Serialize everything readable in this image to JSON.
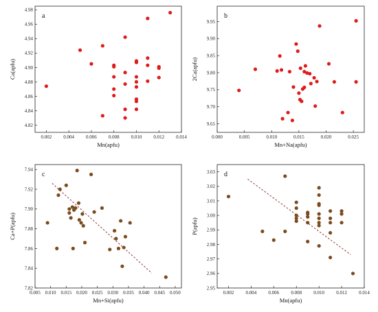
{
  "chart_data": [
    {
      "type": "scatter",
      "panel_label": "a",
      "xlabel": "Mn(apfu)",
      "ylabel": "Ca(apfu)",
      "xlim": [
        0.001,
        0.014
      ],
      "ylim": [
        4.81,
        4.985
      ],
      "xticks": [
        "0.002",
        "0.004",
        "0.006",
        "0.008",
        "0.010",
        "0.012",
        "0.014"
      ],
      "yticks": [
        "4.82",
        "4.84",
        "4.86",
        "4.88",
        "4.90",
        "4.92",
        "4.94",
        "4.96",
        "4.98"
      ],
      "marker_color": "#dd1c1c",
      "trendline": null,
      "points": [
        [
          0.002,
          4.874
        ],
        [
          0.005,
          4.924
        ],
        [
          0.006,
          4.905
        ],
        [
          0.007,
          4.93
        ],
        [
          0.007,
          4.833
        ],
        [
          0.008,
          4.903
        ],
        [
          0.008,
          4.901
        ],
        [
          0.008,
          4.887
        ],
        [
          0.008,
          4.87
        ],
        [
          0.008,
          4.861
        ],
        [
          0.009,
          4.942
        ],
        [
          0.009,
          4.893
        ],
        [
          0.009,
          4.877
        ],
        [
          0.009,
          4.842
        ],
        [
          0.009,
          4.83
        ],
        [
          0.01,
          4.909
        ],
        [
          0.01,
          4.907
        ],
        [
          0.01,
          4.887
        ],
        [
          0.01,
          4.88
        ],
        [
          0.01,
          4.873
        ],
        [
          0.01,
          4.856
        ],
        [
          0.01,
          4.853
        ],
        [
          0.01,
          4.842
        ],
        [
          0.011,
          4.968
        ],
        [
          0.011,
          4.913
        ],
        [
          0.011,
          4.903
        ],
        [
          0.011,
          4.881
        ],
        [
          0.012,
          4.901
        ],
        [
          0.012,
          4.899
        ],
        [
          0.012,
          4.886
        ],
        [
          0.013,
          4.976
        ]
      ]
    },
    {
      "type": "scatter",
      "panel_label": "b",
      "xlabel": "Mn+Na(apfu)",
      "ylabel": "2Ca(apfu)",
      "xlim": [
        0.0,
        0.027
      ],
      "ylim": [
        9.625,
        9.995
      ],
      "xticks": [
        "0.000",
        "0.005",
        "0.010",
        "0.015",
        "0.020",
        "0.025"
      ],
      "yticks": [
        "9.65",
        "9.70",
        "9.75",
        "9.80",
        "9.85",
        "9.90",
        "9.95"
      ],
      "marker_color": "#dd1c1c",
      "trendline": null,
      "points": [
        [
          0.004,
          9.748
        ],
        [
          0.007,
          9.81
        ],
        [
          0.011,
          9.805
        ],
        [
          0.0115,
          9.849
        ],
        [
          0.0118,
          9.808
        ],
        [
          0.012,
          9.665
        ],
        [
          0.013,
          9.683
        ],
        [
          0.0133,
          9.803
        ],
        [
          0.0138,
          9.66
        ],
        [
          0.014,
          9.758
        ],
        [
          0.0145,
          9.884
        ],
        [
          0.0148,
          9.863
        ],
        [
          0.015,
          9.74
        ],
        [
          0.0152,
          9.721
        ],
        [
          0.0153,
          9.813
        ],
        [
          0.0155,
          9.716
        ],
        [
          0.0157,
          9.752
        ],
        [
          0.016,
          9.803
        ],
        [
          0.016,
          9.757
        ],
        [
          0.0162,
          9.82
        ],
        [
          0.0165,
          9.799
        ],
        [
          0.017,
          9.797
        ],
        [
          0.0172,
          9.768
        ],
        [
          0.0178,
          9.785
        ],
        [
          0.018,
          9.702
        ],
        [
          0.0183,
          9.774
        ],
        [
          0.0188,
          9.937
        ],
        [
          0.0205,
          9.826
        ],
        [
          0.0215,
          9.773
        ],
        [
          0.023,
          9.683
        ],
        [
          0.0255,
          9.952
        ],
        [
          0.0255,
          9.773
        ]
      ]
    },
    {
      "type": "scatter",
      "panel_label": "c",
      "xlabel": "Mn+Si(apfu)",
      "ylabel": "Ca+P(apfu)",
      "xlim": [
        0.005,
        0.052
      ],
      "ylim": [
        7.82,
        7.945
      ],
      "xticks": [
        "0.005",
        "0.010",
        "0.015",
        "0.020",
        "0.025",
        "0.030",
        "0.035",
        "0.040",
        "0.045",
        "0.050"
      ],
      "yticks": [
        "7.82",
        "7.84",
        "7.86",
        "7.88",
        "7.90",
        "7.92",
        "7.94"
      ],
      "marker_color": "#7b4c1f",
      "trendline": {
        "style": "dashed",
        "color": "#8b2e2e",
        "from": [
          0.0105,
          7.926
        ],
        "to": [
          0.0425,
          7.835
        ]
      },
      "points": [
        [
          0.009,
          7.886
        ],
        [
          0.012,
          7.86
        ],
        [
          0.0125,
          7.914
        ],
        [
          0.013,
          7.92
        ],
        [
          0.015,
          7.924
        ],
        [
          0.016,
          7.9
        ],
        [
          0.016,
          7.896
        ],
        [
          0.0165,
          7.891
        ],
        [
          0.017,
          7.902
        ],
        [
          0.0172,
          7.86
        ],
        [
          0.0175,
          7.899
        ],
        [
          0.018,
          7.901
        ],
        [
          0.0185,
          7.939
        ],
        [
          0.019,
          7.906
        ],
        [
          0.0192,
          7.889
        ],
        [
          0.0198,
          7.886
        ],
        [
          0.0202,
          7.895
        ],
        [
          0.0205,
          7.883
        ],
        [
          0.021,
          7.866
        ],
        [
          0.023,
          7.935
        ],
        [
          0.024,
          7.897
        ],
        [
          0.0265,
          7.901
        ],
        [
          0.029,
          7.859
        ],
        [
          0.0305,
          7.878
        ],
        [
          0.031,
          7.87
        ],
        [
          0.0318,
          7.86
        ],
        [
          0.0325,
          7.888
        ],
        [
          0.033,
          7.842
        ],
        [
          0.0335,
          7.861
        ],
        [
          0.034,
          7.872
        ],
        [
          0.0355,
          7.886
        ],
        [
          0.047,
          7.831
        ]
      ]
    },
    {
      "type": "scatter",
      "panel_label": "d",
      "xlabel": "Mn(apfu)",
      "ylabel": "P(apfu)",
      "xlim": [
        0.001,
        0.014
      ],
      "ylim": [
        2.95,
        3.035
      ],
      "xticks": [
        "0.002",
        "0.004",
        "0.006",
        "0.008",
        "0.010",
        "0.012",
        "0.014"
      ],
      "yticks": [
        "2.95",
        "2.96",
        "2.97",
        "2.98",
        "2.99",
        "3.00",
        "3.01",
        "3.02",
        "3.03"
      ],
      "marker_color": "#7b4c1f",
      "trendline": {
        "style": "dashed",
        "color": "#8b2e2e",
        "from": [
          0.0037,
          3.025
        ],
        "to": [
          0.0128,
          2.973
        ]
      },
      "points": [
        [
          0.002,
          3.013
        ],
        [
          0.005,
          2.989
        ],
        [
          0.006,
          2.983
        ],
        [
          0.007,
          3.027
        ],
        [
          0.007,
          2.989
        ],
        [
          0.008,
          3.009
        ],
        [
          0.008,
          3.005
        ],
        [
          0.008,
          3.0
        ],
        [
          0.008,
          2.998
        ],
        [
          0.008,
          2.996
        ],
        [
          0.009,
          3.002
        ],
        [
          0.009,
          3.001
        ],
        [
          0.009,
          2.999
        ],
        [
          0.009,
          2.995
        ],
        [
          0.009,
          2.982
        ],
        [
          0.01,
          3.019
        ],
        [
          0.01,
          3.014
        ],
        [
          0.01,
          3.008
        ],
        [
          0.01,
          3.007
        ],
        [
          0.01,
          3.001
        ],
        [
          0.01,
          2.998
        ],
        [
          0.01,
          2.995
        ],
        [
          0.01,
          2.993
        ],
        [
          0.01,
          2.979
        ],
        [
          0.011,
          3.003
        ],
        [
          0.011,
          2.998
        ],
        [
          0.011,
          2.995
        ],
        [
          0.011,
          2.988
        ],
        [
          0.011,
          2.971
        ],
        [
          0.012,
          3.003
        ],
        [
          0.012,
          3.001
        ],
        [
          0.012,
          2.995
        ],
        [
          0.013,
          2.96
        ]
      ]
    }
  ]
}
